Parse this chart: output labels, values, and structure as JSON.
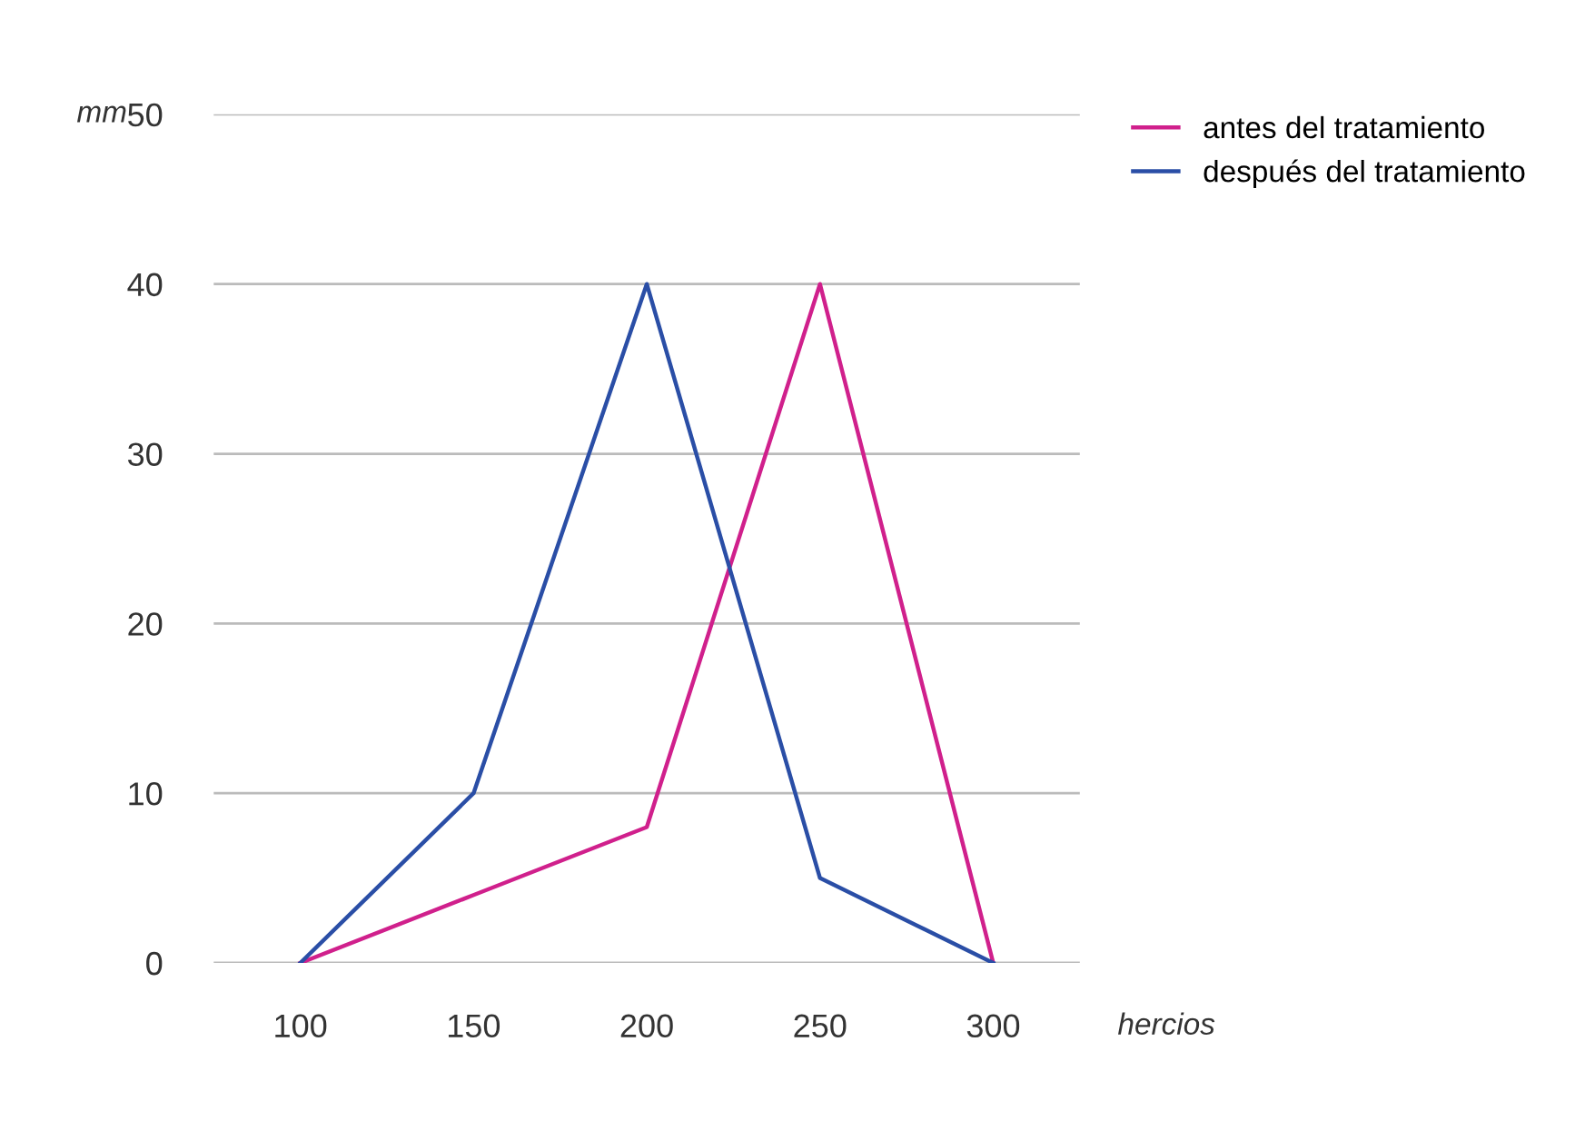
{
  "chart_data": {
    "type": "line",
    "xlabel": "hercios",
    "ylabel": "mm",
    "x": [
      100,
      150,
      200,
      250,
      300
    ],
    "series": [
      {
        "name": "antes del tratamiento",
        "color": "#d0208c",
        "values": [
          0,
          4,
          8,
          40,
          0
        ]
      },
      {
        "name": "después del tratamiento",
        "color": "#2a4ea6",
        "values": [
          0,
          10,
          40,
          5,
          0
        ]
      }
    ],
    "xlim": [
      75,
      325
    ],
    "xticks": [
      100,
      150,
      200,
      250,
      300
    ],
    "ylim": [
      0,
      50
    ],
    "yticks": [
      0,
      10,
      20,
      30,
      40,
      50
    ],
    "grid": "y",
    "legend": "top right",
    "marker": "none",
    "line_style": "solid"
  }
}
